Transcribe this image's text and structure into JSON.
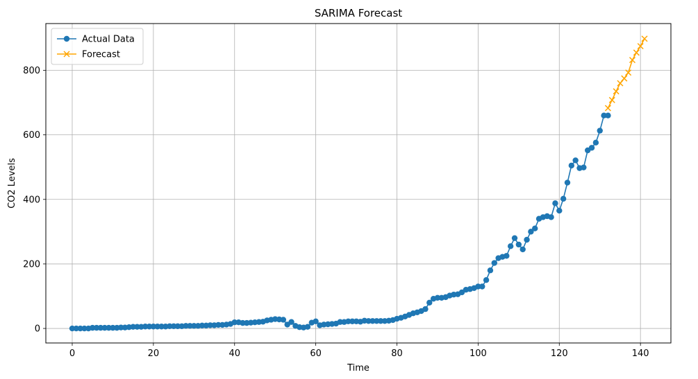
{
  "chart_data": {
    "type": "line",
    "title": "SARIMA Forecast",
    "xlabel": "Time",
    "ylabel": "CO2 Levels",
    "xlim": [
      -6.5,
      147.5
    ],
    "ylim": [
      -45,
      945
    ],
    "xticks": [
      0,
      20,
      40,
      60,
      80,
      100,
      120,
      140
    ],
    "yticks": [
      0,
      200,
      400,
      600,
      800
    ],
    "grid": true,
    "legend_position": "top-left",
    "series": [
      {
        "name": "Actual Data",
        "color": "#1f77b4",
        "marker": "circle",
        "x_start": 0,
        "values": [
          0,
          0,
          0,
          0,
          0,
          2,
          2,
          2,
          2,
          2,
          2,
          2,
          3,
          3,
          4,
          5,
          5,
          5,
          6,
          6,
          6,
          6,
          6,
          6,
          7,
          7,
          7,
          7,
          8,
          8,
          8,
          8,
          9,
          9,
          10,
          10,
          11,
          11,
          12,
          14,
          19,
          19,
          17,
          17,
          18,
          19,
          20,
          21,
          25,
          27,
          29,
          28,
          27,
          12,
          20,
          8,
          4,
          3,
          5,
          18,
          22,
          10,
          12,
          13,
          14,
          15,
          20,
          20,
          22,
          22,
          22,
          21,
          24,
          23,
          23,
          23,
          23,
          23,
          24,
          26,
          30,
          33,
          37,
          42,
          47,
          50,
          54,
          60,
          80,
          92,
          95,
          95,
          97,
          102,
          105,
          106,
          112,
          120,
          122,
          125,
          130,
          130,
          150,
          180,
          203,
          218,
          222,
          225,
          255,
          280,
          260,
          245,
          275,
          300,
          310,
          340,
          345,
          348,
          345,
          388,
          365,
          402,
          452,
          505,
          521,
          497,
          499,
          552,
          560,
          576,
          613,
          660,
          660
        ]
      },
      {
        "name": "Forecast",
        "color": "#ffa500",
        "marker": "x",
        "x": [
          132,
          133,
          134,
          135,
          136,
          137,
          138,
          139,
          140,
          141
        ],
        "values": [
          683,
          708,
          735,
          760,
          775,
          793,
          832,
          855,
          875,
          898
        ]
      }
    ]
  }
}
